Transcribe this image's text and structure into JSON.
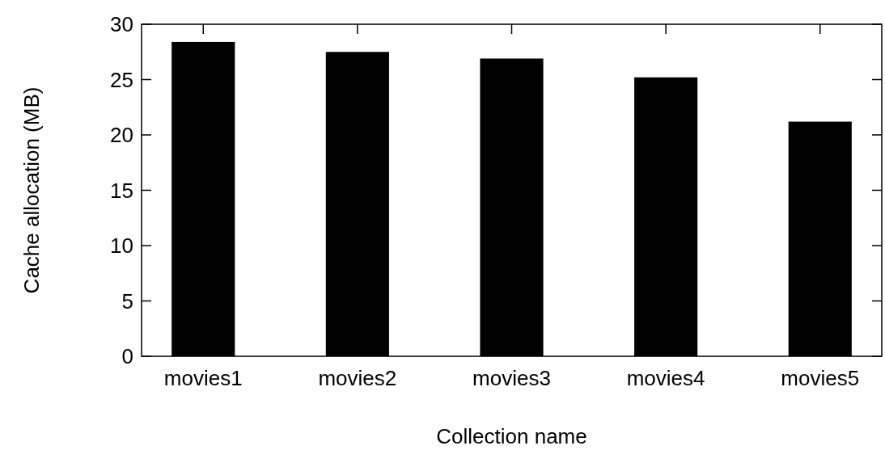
{
  "chart_data": {
    "type": "bar",
    "xlabel": "Collection name",
    "ylabel": "Cache allocation (MB)",
    "categories": [
      "movies1",
      "movies2",
      "movies3",
      "movies4",
      "movies5"
    ],
    "values": [
      28.4,
      27.5,
      26.9,
      25.2,
      21.2
    ],
    "color": "#000000",
    "ylim": [
      0,
      30
    ],
    "yticks": [
      0,
      5,
      10,
      15,
      20,
      25,
      30
    ],
    "grid": false
  }
}
